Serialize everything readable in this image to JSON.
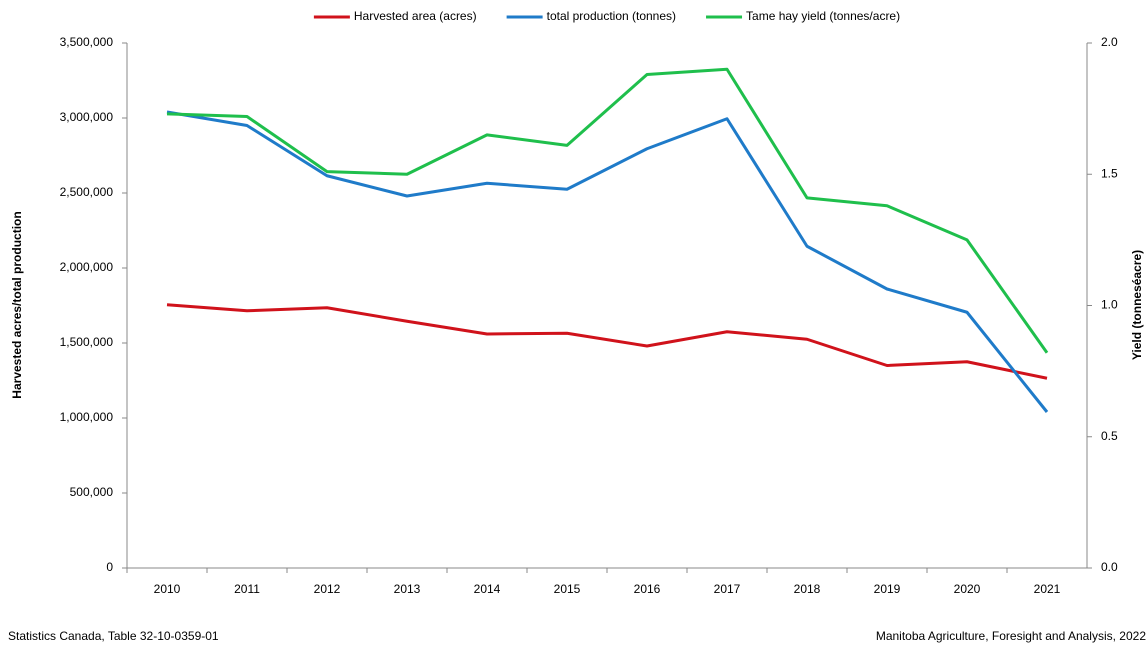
{
  "chart_data": {
    "type": "line",
    "y_label": "Harvested acres/total production",
    "y2_label": "Yield (tonneséacre)",
    "source_left": "Statistics Canada, Table 32-10-0359-01",
    "source_right": "Manitoba Agriculture, Foresight and Analysis, 2022",
    "legend": "top",
    "categories": [
      "2010",
      "2011",
      "2012",
      "2013",
      "2014",
      "2015",
      "2016",
      "2017",
      "2018",
      "2019",
      "2020",
      "2021"
    ],
    "series": [
      {
        "name": "Harvested area (acres)",
        "color": "#d0121b",
        "values": [
          1755000,
          1715000,
          1735000,
          1645000,
          1560000,
          1565000,
          1480000,
          1575000,
          1525000,
          1350000,
          1375000,
          1265000
        ]
      },
      {
        "name": "total production (tonnes)",
        "color": "#1f7bc9",
        "values": [
          3040000,
          2950000,
          2615000,
          2480000,
          2565000,
          2525000,
          2795000,
          2995000,
          2145000,
          1860000,
          1705000,
          1040000
        ]
      },
      {
        "name": "Tame hay yield (tonnes/acre)",
        "color": "#1fbf4c",
        "axis": "y2",
        "values": [
          1.73,
          1.72,
          1.51,
          1.5,
          1.65,
          1.61,
          1.88,
          1.9,
          1.41,
          1.38,
          1.25,
          0.82
        ]
      }
    ],
    "ylim": [
      0,
      3500000
    ],
    "yticks": [
      {
        "value": 0,
        "label": "0"
      },
      {
        "value": 500000,
        "label": "500,000"
      },
      {
        "value": 1000000,
        "label": "1,000,000"
      },
      {
        "value": 1500000,
        "label": "1,500,000"
      },
      {
        "value": 2000000,
        "label": "2,000,000"
      },
      {
        "value": 2500000,
        "label": "2,500,000"
      },
      {
        "value": 3000000,
        "label": "3,000,000"
      },
      {
        "value": 3500000,
        "label": "3,500,000"
      }
    ],
    "y2lim": [
      0,
      2
    ],
    "y2ticks": [
      {
        "value": 0,
        "label": "0.0"
      },
      0.5,
      {
        "value": 1,
        "label": "1.0"
      },
      1.5,
      {
        "value": 2,
        "label": "2.0"
      }
    ],
    "grid": false
  }
}
